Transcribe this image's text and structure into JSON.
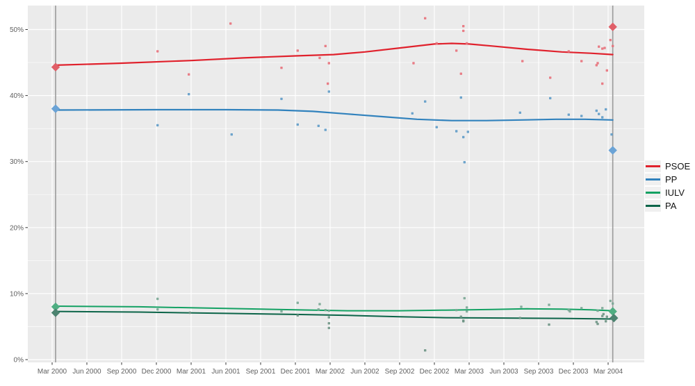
{
  "chart_data": {
    "type": "scatter",
    "title": "",
    "description": "Polling scatter with loess trend lines for Andalusian parties PSOE, PP, IULV, PA between the Mar 2000 and Mar 2004 elections; diamonds mark election results on grey vertical election-date lines",
    "style": {
      "panel_bg": "#ebebeb",
      "grid": "#ffffff",
      "event_line": "#999999",
      "tick_text": "#606060",
      "tick_mark": "#333333"
    },
    "x_axis": {
      "ticks": [
        "Mar 2000",
        "Jun 2000",
        "Sep 2000",
        "Dec 2000",
        "Mar 2001",
        "Jun 2001",
        "Sep 2001",
        "Dec 2001",
        "Mar 2002",
        "Jun 2002",
        "Sep 2002",
        "Dec 2002",
        "Mar 2003",
        "Jun 2003",
        "Sep 2003",
        "Dec 2003",
        "Mar 2004"
      ],
      "tick_interval_months": 3
    },
    "y_axis": {
      "ticks": [
        "0%",
        "10%",
        "20%",
        "30%",
        "40%",
        "50%"
      ],
      "values": [
        0,
        10,
        20,
        30,
        40,
        50
      ],
      "minor": [
        5,
        15,
        25,
        35,
        45
      ],
      "min": 0,
      "max": 53
    },
    "event_vlines_months": [
      0.3,
      48.4
    ],
    "legend_position": "right",
    "series": [
      {
        "name": "PSOE",
        "line_color": "#e0212c",
        "point_color": "#e8717b",
        "diamond_color": "#e05f68",
        "line_width": 2.2,
        "smooth": [
          [
            0.3,
            44.6
          ],
          [
            6,
            44.9
          ],
          [
            12,
            45.3
          ],
          [
            16.5,
            45.7
          ],
          [
            21,
            46.0
          ],
          [
            24.3,
            46.2
          ],
          [
            27,
            46.6
          ],
          [
            30,
            47.2
          ],
          [
            33,
            47.8
          ],
          [
            34.5,
            47.9
          ],
          [
            36,
            47.8
          ],
          [
            38,
            47.5
          ],
          [
            41,
            47.0
          ],
          [
            44,
            46.6
          ],
          [
            46.5,
            46.4
          ],
          [
            48.4,
            46.2
          ]
        ],
        "points": [
          [
            9.1,
            46.7
          ],
          [
            11.8,
            43.2
          ],
          [
            15.4,
            50.9
          ],
          [
            19.8,
            44.2
          ],
          [
            21.2,
            46.8
          ],
          [
            23.1,
            45.7
          ],
          [
            23.6,
            47.5
          ],
          [
            23.9,
            44.9
          ],
          [
            23.8,
            41.8
          ],
          [
            31.2,
            44.9
          ],
          [
            32.2,
            51.7
          ],
          [
            33.2,
            47.9
          ],
          [
            34.9,
            46.8
          ],
          [
            35.5,
            50.5
          ],
          [
            35.5,
            49.8
          ],
          [
            35.8,
            47.9
          ],
          [
            35.3,
            43.3
          ],
          [
            40.6,
            45.2
          ],
          [
            43.0,
            42.7
          ],
          [
            44.6,
            46.7
          ],
          [
            45.7,
            45.2
          ],
          [
            47.0,
            44.6
          ],
          [
            47.1,
            44.9
          ],
          [
            47.2,
            47.4
          ],
          [
            47.5,
            47.1
          ],
          [
            47.7,
            47.2
          ],
          [
            47.5,
            41.8
          ],
          [
            47.9,
            43.8
          ],
          [
            48.2,
            48.4
          ],
          [
            48.4,
            47.5
          ]
        ],
        "elections": [
          [
            0.3,
            44.3
          ],
          [
            48.4,
            50.4
          ]
        ]
      },
      {
        "name": "PP",
        "line_color": "#3182bd",
        "point_color": "#5e9bc8",
        "diamond_color": "#6ba3d6",
        "line_width": 2.2,
        "smooth": [
          [
            0.3,
            37.8
          ],
          [
            9,
            37.85
          ],
          [
            15,
            37.85
          ],
          [
            19.5,
            37.8
          ],
          [
            22.5,
            37.6
          ],
          [
            25.5,
            37.2
          ],
          [
            28.5,
            36.8
          ],
          [
            31.5,
            36.4
          ],
          [
            34.5,
            36.2
          ],
          [
            37.5,
            36.2
          ],
          [
            40.5,
            36.3
          ],
          [
            43.5,
            36.4
          ],
          [
            46,
            36.4
          ],
          [
            48.4,
            36.3
          ]
        ],
        "points": [
          [
            9.1,
            35.5
          ],
          [
            11.8,
            40.2
          ],
          [
            15.5,
            34.1
          ],
          [
            19.8,
            39.5
          ],
          [
            21.2,
            35.6
          ],
          [
            23.0,
            35.4
          ],
          [
            23.6,
            34.8
          ],
          [
            23.9,
            40.6
          ],
          [
            31.1,
            37.3
          ],
          [
            32.2,
            39.1
          ],
          [
            33.2,
            35.2
          ],
          [
            34.9,
            34.6
          ],
          [
            35.3,
            39.7
          ],
          [
            35.5,
            33.7
          ],
          [
            35.6,
            29.9
          ],
          [
            35.9,
            34.5
          ],
          [
            40.4,
            37.4
          ],
          [
            43.0,
            39.6
          ],
          [
            44.6,
            37.1
          ],
          [
            45.7,
            36.9
          ],
          [
            47.0,
            37.7
          ],
          [
            47.2,
            37.2
          ],
          [
            47.5,
            36.7
          ],
          [
            47.8,
            37.9
          ],
          [
            48.3,
            34.1
          ]
        ],
        "elections": [
          [
            0.3,
            38.0
          ],
          [
            48.4,
            31.7
          ]
        ]
      },
      {
        "name": "IULV",
        "line_color": "#13a163",
        "point_color": "#7aa795",
        "diamond_color": "#4fae82",
        "line_width": 2.0,
        "smooth": [
          [
            0.3,
            8.1
          ],
          [
            7.5,
            8.0
          ],
          [
            15,
            7.75
          ],
          [
            21,
            7.55
          ],
          [
            25.5,
            7.4
          ],
          [
            30,
            7.4
          ],
          [
            34,
            7.5
          ],
          [
            38,
            7.6
          ],
          [
            41,
            7.7
          ],
          [
            44,
            7.65
          ],
          [
            46.5,
            7.55
          ],
          [
            48.4,
            7.4
          ]
        ],
        "points": [
          [
            9.1,
            9.2
          ],
          [
            9.1,
            7.6
          ],
          [
            19.8,
            7.3
          ],
          [
            21.2,
            8.6
          ],
          [
            23.0,
            7.6
          ],
          [
            23.1,
            8.4
          ],
          [
            23.6,
            7.5
          ],
          [
            23.9,
            7.4
          ],
          [
            34.9,
            7.5
          ],
          [
            35.6,
            9.3
          ],
          [
            35.8,
            7.9
          ],
          [
            35.8,
            7.3
          ],
          [
            40.5,
            8.0
          ],
          [
            42.9,
            8.3
          ],
          [
            44.6,
            7.5
          ],
          [
            44.7,
            7.3
          ],
          [
            45.7,
            7.8
          ],
          [
            47.1,
            7.4
          ],
          [
            47.5,
            7.8
          ],
          [
            48.2,
            8.9
          ],
          [
            48.4,
            8.5
          ]
        ],
        "elections": [
          [
            0.3,
            8.0
          ],
          [
            48.4,
            7.3
          ]
        ]
      },
      {
        "name": "PA",
        "line_color": "#0b6448",
        "point_color": "#6e9585",
        "diamond_color": "#4c8370",
        "line_width": 2.0,
        "smooth": [
          [
            0.3,
            7.3
          ],
          [
            7.5,
            7.2
          ],
          [
            15,
            7.0
          ],
          [
            21,
            6.85
          ],
          [
            25.5,
            6.7
          ],
          [
            30,
            6.5
          ],
          [
            34,
            6.35
          ],
          [
            39,
            6.3
          ],
          [
            44,
            6.25
          ],
          [
            48.4,
            6.15
          ]
        ],
        "points": [
          [
            11.9,
            7.1
          ],
          [
            21.2,
            6.7
          ],
          [
            23.9,
            6.4
          ],
          [
            23.9,
            5.5
          ],
          [
            23.9,
            4.8
          ],
          [
            32.2,
            1.4
          ],
          [
            35.3,
            6.5
          ],
          [
            35.5,
            5.8
          ],
          [
            35.5,
            5.9
          ],
          [
            40.4,
            6.3
          ],
          [
            42.9,
            5.3
          ],
          [
            47.0,
            5.7
          ],
          [
            47.1,
            5.4
          ],
          [
            47.5,
            6.6
          ],
          [
            47.6,
            6.9
          ],
          [
            47.8,
            5.8
          ],
          [
            47.9,
            6.5
          ]
        ],
        "elections": [
          [
            0.3,
            7.1
          ],
          [
            48.5,
            6.3
          ]
        ]
      }
    ]
  }
}
